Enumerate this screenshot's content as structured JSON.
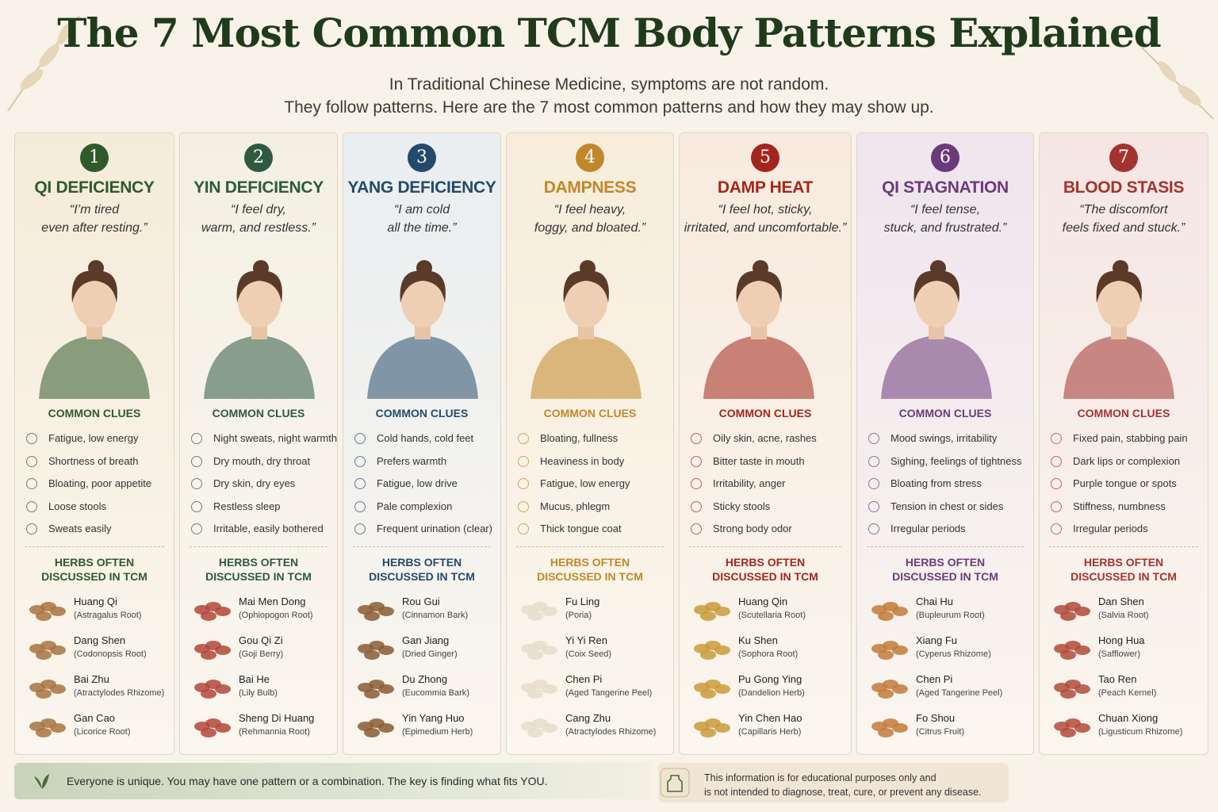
{
  "header": {
    "title": "The 7 Most Common TCM Body Patterns Explained",
    "subtitle_lines": [
      "In Traditional Chinese Medicine, symptoms are not random.",
      "They follow patterns.  Here are the 7 most common patterns and how they may show up."
    ]
  },
  "patterns": [
    {
      "number": 1,
      "name": "QI DEFICIENCY",
      "color": "#2f5a2c",
      "quote_lines": [
        "“I’m tired",
        "even after resting.”"
      ],
      "clues_heading": "COMMON CLUES",
      "clues": [
        "Fatigue, low energy",
        "Shortness of breath",
        "Bloating, poor appetite",
        "Loose stools",
        "Sweats easily"
      ],
      "herbs_heading_lines": [
        "HERBS OFTEN",
        "DISCUSSED IN TCM"
      ],
      "herbs": [
        {
          "name": "Huang Qi",
          "latin": "(Astragalus Root)"
        },
        {
          "name": "Dang Shen",
          "latin": "(Codonopsis Root)"
        },
        {
          "name": "Bai Zhu",
          "latin": "(Atractylodes Rhizome)"
        },
        {
          "name": "Gan Cao",
          "latin": "(Licorice Root)"
        }
      ]
    },
    {
      "number": 2,
      "name": "YIN DEFICIENCY",
      "color": "#2e5a40",
      "quote_lines": [
        "“I feel dry,",
        "warm, and restless.”"
      ],
      "clues_heading": "COMMON CLUES",
      "clues": [
        "Night sweats, night warmth",
        "Dry mouth, dry throat",
        "Dry skin, dry eyes",
        "Restless sleep",
        "Irritable, easily bothered"
      ],
      "herbs_heading_lines": [
        "HERBS OFTEN",
        "DISCUSSED IN TCM"
      ],
      "herbs": [
        {
          "name": "Mai Men Dong",
          "latin": "(Ophiopogon Root)"
        },
        {
          "name": "Gou Qi Zi",
          "latin": "(Goji Berry)"
        },
        {
          "name": "Bai He",
          "latin": "(Lily Bulb)"
        },
        {
          "name": "Sheng Di Huang",
          "latin": "(Rehmannia Root)"
        }
      ]
    },
    {
      "number": 3,
      "name": "YANG DEFICIENCY",
      "color": "#244a6b",
      "quote_lines": [
        "“I am cold",
        "all the time.”"
      ],
      "clues_heading": "COMMON CLUES",
      "clues": [
        "Cold hands, cold feet",
        "Prefers warmth",
        "Fatigue, low drive",
        "Pale complexion",
        "Frequent urination (clear)"
      ],
      "herbs_heading_lines": [
        "HERBS OFTEN",
        "DISCUSSED IN TCM"
      ],
      "herbs": [
        {
          "name": "Rou Gui",
          "latin": "(Cinnamon Bark)"
        },
        {
          "name": "Gan Jiang",
          "latin": "(Dried Ginger)"
        },
        {
          "name": "Du Zhong",
          "latin": "(Eucommia Bark)"
        },
        {
          "name": "Yin Yang Huo",
          "latin": "(Epimedium Herb)"
        }
      ]
    },
    {
      "number": 4,
      "name": "DAMPNESS",
      "color": "#c1872a",
      "quote_lines": [
        "“I feel heavy,",
        "foggy, and bloated.”"
      ],
      "clues_heading": "COMMON CLUES",
      "clues": [
        "Bloating, fullness",
        "Heaviness in body",
        "Fatigue, low energy",
        "Mucus, phlegm",
        "Thick tongue coat"
      ],
      "herbs_heading_lines": [
        "HERBS OFTEN",
        "DISCUSSED IN TCM"
      ],
      "herbs": [
        {
          "name": "Fu Ling",
          "latin": "(Poria)"
        },
        {
          "name": "Yi Yi Ren",
          "latin": "(Coix Seed)"
        },
        {
          "name": "Chen Pi",
          "latin": "(Aged Tangerine Peel)"
        },
        {
          "name": "Cang Zhu",
          "latin": "(Atractylodes Rhizome)"
        }
      ]
    },
    {
      "number": 5,
      "name": "DAMP HEAT",
      "color": "#a3261c",
      "quote_lines": [
        "“I feel hot, sticky,",
        "irritated, and uncomfortable.”"
      ],
      "clues_heading": "COMMON CLUES",
      "clues": [
        "Oily skin, acne, rashes",
        "Bitter taste in mouth",
        "Irritability, anger",
        "Sticky stools",
        "Strong body odor"
      ],
      "herbs_heading_lines": [
        "HERBS OFTEN",
        "DISCUSSED IN TCM"
      ],
      "herbs": [
        {
          "name": "Huang Qin",
          "latin": "(Scutellaria Root)"
        },
        {
          "name": "Ku Shen",
          "latin": "(Sophora Root)"
        },
        {
          "name": "Pu Gong Ying",
          "latin": "(Dandelion Herb)"
        },
        {
          "name": "Yin Chen Hao",
          "latin": "(Capillaris Herb)"
        }
      ]
    },
    {
      "number": 6,
      "name": "QI STAGNATION",
      "color": "#6b3a7a",
      "quote_lines": [
        "“I feel tense,",
        "stuck, and frustrated.”"
      ],
      "clues_heading": "COMMON CLUES",
      "clues": [
        "Mood swings, irritability",
        "Sighing, feelings of tightness",
        "Bloating from stress",
        "Tension in chest or sides",
        "Irregular periods"
      ],
      "herbs_heading_lines": [
        "HERBS OFTEN",
        "DISCUSSED IN TCM"
      ],
      "herbs": [
        {
          "name": "Chai Hu",
          "latin": "(Bupleurum Root)"
        },
        {
          "name": "Xiang Fu",
          "latin": "(Cyperus Rhizome)"
        },
        {
          "name": "Chen Pi",
          "latin": "(Aged Tangerine Peel)"
        },
        {
          "name": "Fo Shou",
          "latin": "(Citrus Fruit)"
        }
      ]
    },
    {
      "number": 7,
      "name": "BLOOD STASIS",
      "color": "#a3332f",
      "quote_lines": [
        "“The discomfort",
        "feels fixed and stuck.”"
      ],
      "clues_heading": "COMMON CLUES",
      "clues": [
        "Fixed pain, stabbing pain",
        "Dark lips or complexion",
        "Purple tongue or spots",
        "Stiffness, numbness",
        "Irregular periods"
      ],
      "herbs_heading_lines": [
        "HERBS OFTEN",
        "DISCUSSED IN TCM"
      ],
      "herbs": [
        {
          "name": "Dan Shen",
          "latin": "(Salvia Root)"
        },
        {
          "name": "Hong Hua",
          "latin": "(Safflower)"
        },
        {
          "name": "Tao Ren",
          "latin": "(Peach Kernel)"
        },
        {
          "name": "Chuan Xiong",
          "latin": "(Ligusticum Rhizome)"
        }
      ]
    }
  ],
  "footer": {
    "note": "Everyone is unique. You may have one pattern or a combination. The key is finding what fits YOU.",
    "disclaimer_lines": [
      "This information is for educational purposes only and",
      "is not intended to diagnose, treat, cure, or prevent any disease."
    ]
  }
}
